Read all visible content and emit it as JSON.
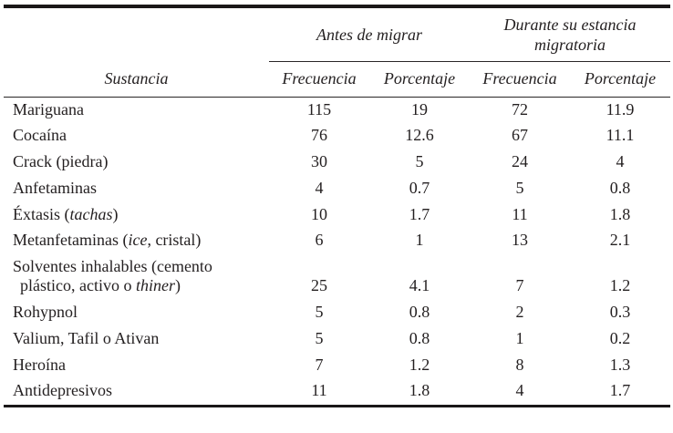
{
  "page": {
    "background": "#ffffff",
    "text_color": "#231f20",
    "rule_color": "#1a1718"
  },
  "table": {
    "group_headers": [
      {
        "label": "Antes de migrar"
      },
      {
        "label": "Durante su estancia migratoria"
      }
    ],
    "column_headers": {
      "substance": "Sustancia",
      "cols": [
        "Frecuencia",
        "Porcentaje",
        "Frecuencia",
        "Porcentaje"
      ]
    },
    "rows": [
      {
        "substance": [
          {
            "text": "Mariguana"
          }
        ],
        "values": [
          "115",
          "19",
          "72",
          "11.9"
        ]
      },
      {
        "substance": [
          {
            "text": "Cocaína"
          }
        ],
        "values": [
          "76",
          "12.6",
          "67",
          "11.1"
        ]
      },
      {
        "substance": [
          {
            "text": "Crack (piedra)"
          }
        ],
        "values": [
          "30",
          "5",
          "24",
          "4"
        ]
      },
      {
        "substance": [
          {
            "text": "Anfetaminas"
          }
        ],
        "values": [
          "4",
          "0.7",
          "5",
          "0.8"
        ]
      },
      {
        "substance": [
          {
            "text": "Éxtasis ("
          },
          {
            "text": "tachas",
            "italic": true
          },
          {
            "text": ")"
          }
        ],
        "values": [
          "10",
          "1.7",
          "11",
          "1.8"
        ]
      },
      {
        "substance": [
          {
            "text": "Metanfetaminas ("
          },
          {
            "text": "ice",
            "italic": true
          },
          {
            "text": ", cristal)"
          }
        ],
        "values": [
          "6",
          "1",
          "13",
          "2.1"
        ]
      },
      {
        "substance": [
          {
            "text": "Solventes inhalables (cemento plástico, activo o "
          },
          {
            "text": "thiner",
            "italic": true
          },
          {
            "text": ")"
          }
        ],
        "values": [
          "25",
          "4.1",
          "7",
          "1.2"
        ]
      },
      {
        "substance": [
          {
            "text": "Rohypnol"
          }
        ],
        "values": [
          "5",
          "0.8",
          "2",
          "0.3"
        ]
      },
      {
        "substance": [
          {
            "text": "Valium, Tafil o Ativan"
          }
        ],
        "values": [
          "5",
          "0.8",
          "1",
          "0.2"
        ]
      },
      {
        "substance": [
          {
            "text": "Heroína"
          }
        ],
        "values": [
          "7",
          "1.2",
          "8",
          "1.3"
        ]
      },
      {
        "substance": [
          {
            "text": "Antidepresivos"
          }
        ],
        "values": [
          "11",
          "1.8",
          "4",
          "1.7"
        ]
      }
    ]
  },
  "chart_data": {
    "type": "table",
    "columns": [
      "Sustancia",
      "Antes de migrar - Frecuencia",
      "Antes de migrar - Porcentaje",
      "Durante su estancia migratoria - Frecuencia",
      "Durante su estancia migratoria - Porcentaje"
    ],
    "rows": [
      [
        "Mariguana",
        115,
        19,
        72,
        11.9
      ],
      [
        "Cocaína",
        76,
        12.6,
        67,
        11.1
      ],
      [
        "Crack (piedra)",
        30,
        5,
        24,
        4
      ],
      [
        "Anfetaminas",
        4,
        0.7,
        5,
        0.8
      ],
      [
        "Éxtasis (tachas)",
        10,
        1.7,
        11,
        1.8
      ],
      [
        "Metanfetaminas (ice, cristal)",
        6,
        1,
        13,
        2.1
      ],
      [
        "Solventes inhalables (cemento plástico, activo o thiner)",
        25,
        4.1,
        7,
        1.2
      ],
      [
        "Rohypnol",
        5,
        0.8,
        2,
        0.3
      ],
      [
        "Valium, Tafil o Ativan",
        5,
        0.8,
        1,
        0.2
      ],
      [
        "Heroína",
        7,
        1.2,
        8,
        1.3
      ],
      [
        "Antidepresivos",
        11,
        1.8,
        4,
        1.7
      ]
    ]
  }
}
